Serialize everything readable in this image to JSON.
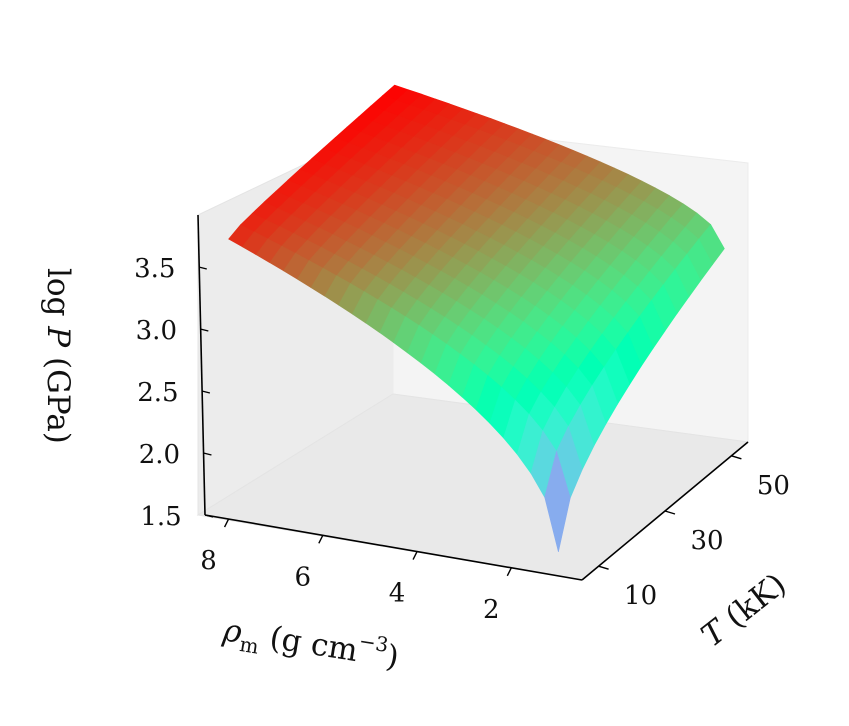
{
  "chart_data": {
    "type": "surface3d",
    "title": "",
    "colormap": "rainbow",
    "axes": {
      "x": {
        "label_symbol": "ρ",
        "label_sub": "m",
        "label_unit": " (g cm",
        "label_sup": "−3",
        "label_close": ")",
        "range": [
          0.5,
          8.5
        ],
        "ticks": [
          8,
          6,
          4,
          2
        ]
      },
      "y": {
        "label_symbol": "T",
        "label_unit": " (kK)",
        "range": [
          5,
          55
        ],
        "ticks": [
          10,
          30,
          50
        ]
      },
      "z": {
        "label_main": "log ",
        "label_symbol": "P",
        "label_unit": " (GPa)",
        "range": [
          1.5,
          3.75
        ],
        "ticks": [
          "1.5",
          "2.0",
          "2.5",
          "3.0",
          "3.5"
        ]
      }
    },
    "surface": {
      "rho_range": [
        1,
        8
      ],
      "T_range": [
        5,
        55
      ],
      "logP_corners": {
        "rho_low_T_low": 1.68,
        "rho_low_T_high": 2.92,
        "rho_high_T_low": 3.6,
        "rho_high_T_high": 3.72
      }
    },
    "pane_color": "#f2f2f2",
    "grid": false
  }
}
